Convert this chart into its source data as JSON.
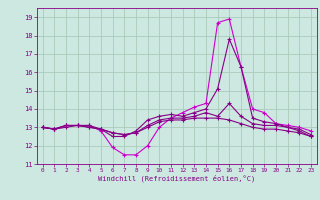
{
  "xlabel": "Windchill (Refroidissement éolien,°C)",
  "xlim": [
    -0.5,
    23.5
  ],
  "ylim": [
    11,
    19.5
  ],
  "xticks": [
    0,
    1,
    2,
    3,
    4,
    5,
    6,
    7,
    8,
    9,
    10,
    11,
    12,
    13,
    14,
    15,
    16,
    17,
    18,
    19,
    20,
    21,
    22,
    23
  ],
  "yticks": [
    11,
    12,
    13,
    14,
    15,
    16,
    17,
    18,
    19
  ],
  "bg_color": "#cce8e0",
  "grid_color": "#aaccbb",
  "line_color1": "#cc00cc",
  "line_color2": "#880088",
  "line1_x": [
    0,
    1,
    2,
    3,
    4,
    5,
    6,
    7,
    8,
    9,
    10,
    11,
    12,
    13,
    14,
    15,
    16,
    17,
    18,
    19,
    20,
    21,
    22,
    23
  ],
  "line1_y": [
    13.0,
    12.9,
    13.1,
    13.1,
    13.1,
    12.8,
    11.9,
    11.5,
    11.5,
    12.0,
    13.0,
    13.5,
    13.8,
    14.1,
    14.3,
    18.7,
    18.9,
    16.3,
    14.0,
    13.8,
    13.2,
    13.1,
    13.0,
    12.8
  ],
  "line2_x": [
    0,
    1,
    2,
    3,
    4,
    5,
    6,
    7,
    8,
    9,
    10,
    11,
    12,
    13,
    14,
    15,
    16,
    17,
    18,
    19,
    20,
    21,
    22,
    23
  ],
  "line2_y": [
    13.0,
    12.9,
    13.1,
    13.1,
    13.1,
    12.9,
    12.5,
    12.5,
    12.8,
    13.4,
    13.6,
    13.7,
    13.6,
    13.8,
    14.0,
    15.1,
    17.8,
    16.3,
    13.5,
    13.3,
    13.2,
    13.0,
    12.9,
    12.6
  ],
  "line3_x": [
    0,
    1,
    2,
    3,
    4,
    5,
    6,
    7,
    8,
    9,
    10,
    11,
    12,
    13,
    14,
    15,
    16,
    17,
    18,
    19,
    20,
    21,
    22,
    23
  ],
  "line3_y": [
    13.0,
    12.9,
    13.1,
    13.1,
    13.0,
    12.9,
    12.7,
    12.6,
    12.7,
    13.1,
    13.4,
    13.5,
    13.5,
    13.6,
    13.8,
    13.6,
    14.3,
    13.6,
    13.2,
    13.1,
    13.1,
    13.0,
    12.8,
    12.5
  ],
  "line4_x": [
    0,
    1,
    2,
    3,
    4,
    5,
    6,
    7,
    8,
    9,
    10,
    11,
    12,
    13,
    14,
    15,
    16,
    17,
    18,
    19,
    20,
    21,
    22,
    23
  ],
  "line4_y": [
    13.0,
    12.9,
    13.0,
    13.1,
    13.0,
    12.9,
    12.7,
    12.6,
    12.7,
    13.0,
    13.3,
    13.4,
    13.4,
    13.5,
    13.5,
    13.5,
    13.4,
    13.2,
    13.0,
    12.9,
    12.9,
    12.8,
    12.7,
    12.5
  ]
}
